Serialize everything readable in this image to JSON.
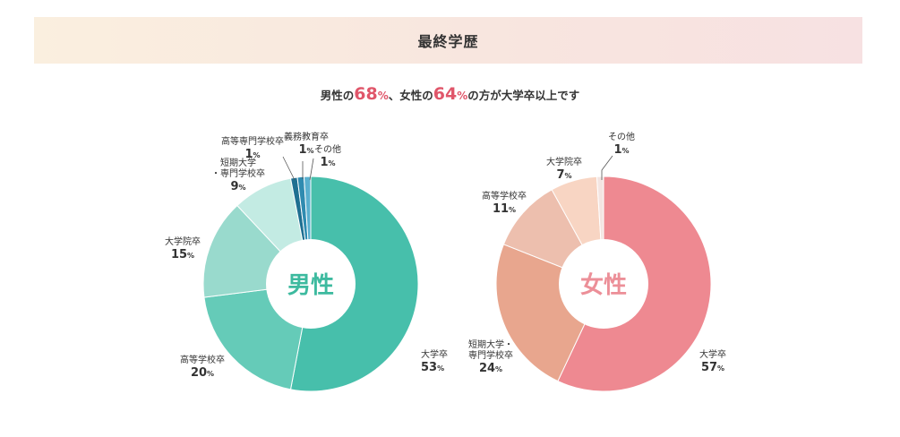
{
  "header": {
    "title": "最終学歴"
  },
  "summary": {
    "part1": "男性の",
    "male_value": "68",
    "unit1": "%",
    "part2": "、女性の",
    "female_value": "64",
    "unit2": "%",
    "part3": "の方が大学卒以上です"
  },
  "chart_data": [
    {
      "type": "pie",
      "center_label": "男性",
      "center_color": "#3dba9f",
      "unit": "%",
      "slices": [
        {
          "label": "大学卒",
          "value": 53,
          "color": "#47bfab"
        },
        {
          "label": "高等学校卒",
          "value": 20,
          "color": "#65cbb8"
        },
        {
          "label": "大学院卒",
          "value": 15,
          "color": "#99dacd"
        },
        {
          "label": "短期大学・専門学校卒",
          "value": 9,
          "color": "#c3ebe3"
        },
        {
          "label": "高等専門学校卒",
          "value": 1,
          "color": "#1e6f91"
        },
        {
          "label": "義務教育卒",
          "value": 1,
          "color": "#2f8bb0"
        },
        {
          "label": "その他",
          "value": 1,
          "color": "#5ab0cf"
        }
      ]
    },
    {
      "type": "pie",
      "center_label": "女性",
      "center_color": "#ec8f98",
      "unit": "%",
      "slices": [
        {
          "label": "大学卒",
          "value": 57,
          "color": "#ee8991"
        },
        {
          "label": "短期大学・専門学校卒",
          "value": 24,
          "color": "#e8a68e"
        },
        {
          "label": "高等学校卒",
          "value": 11,
          "color": "#edbfae"
        },
        {
          "label": "大学院卒",
          "value": 7,
          "color": "#f8d5c3"
        },
        {
          "label": "その他",
          "value": 1,
          "color": "#f3e5e2"
        }
      ]
    }
  ]
}
